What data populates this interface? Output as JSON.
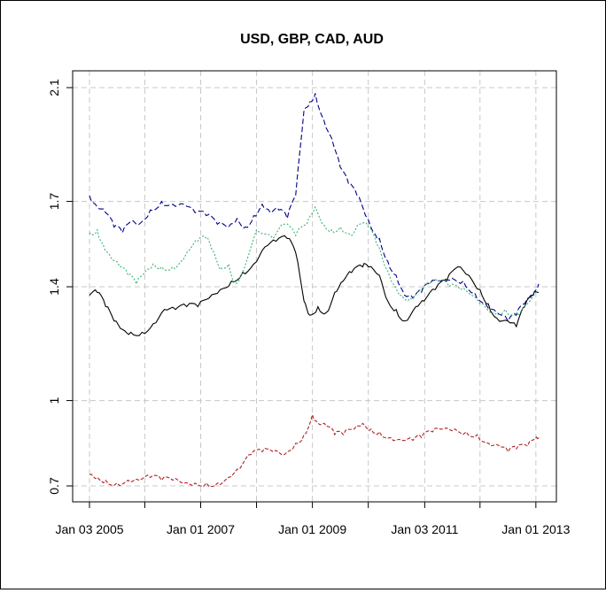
{
  "chart_data": {
    "type": "line",
    "title": "USD, GBP, CAD, AUD",
    "xlabel": "",
    "ylabel": "",
    "ylim": [
      0.65,
      2.2
    ],
    "xlim": [
      2005.01,
      2013.05
    ],
    "grid": true,
    "legend": "none",
    "yticks": [
      0.7,
      1.0,
      1.4,
      1.7,
      2.1
    ],
    "ytick_labels": [
      "0.7",
      "1",
      "1.4",
      "1.7",
      "2.1"
    ],
    "xticks": [
      2005.01,
      2007.0,
      2009.0,
      2011.01,
      2013.0
    ],
    "xtick_labels": [
      "Jan 03 2005",
      "Jan 01 2007",
      "Jan 01 2009",
      "Jan 03 2011",
      "Jan 01 2013"
    ],
    "minor_xticks": [
      2006.0,
      2008.0,
      2010.0,
      2012.0
    ],
    "series": [
      {
        "color": "#000000",
        "dash": "solid",
        "points": [
          [
            2005.01,
            1.37
          ],
          [
            2005.15,
            1.38
          ],
          [
            2005.3,
            1.33
          ],
          [
            2005.45,
            1.28
          ],
          [
            2005.6,
            1.25
          ],
          [
            2005.75,
            1.24
          ],
          [
            2005.95,
            1.24
          ],
          [
            2006.15,
            1.27
          ],
          [
            2006.35,
            1.32
          ],
          [
            2006.55,
            1.32
          ],
          [
            2006.75,
            1.33
          ],
          [
            2006.95,
            1.33
          ],
          [
            2007.15,
            1.36
          ],
          [
            2007.35,
            1.39
          ],
          [
            2007.55,
            1.42
          ],
          [
            2007.75,
            1.45
          ],
          [
            2007.95,
            1.48
          ],
          [
            2008.15,
            1.54
          ],
          [
            2008.35,
            1.56
          ],
          [
            2008.55,
            1.57
          ],
          [
            2008.7,
            1.52
          ],
          [
            2008.85,
            1.35
          ],
          [
            2008.95,
            1.3
          ],
          [
            2009.1,
            1.33
          ],
          [
            2009.25,
            1.31
          ],
          [
            2009.4,
            1.38
          ],
          [
            2009.55,
            1.42
          ],
          [
            2009.7,
            1.45
          ],
          [
            2009.9,
            1.47
          ],
          [
            2010.0,
            1.47
          ],
          [
            2010.2,
            1.44
          ],
          [
            2010.35,
            1.35
          ],
          [
            2010.5,
            1.32
          ],
          [
            2010.65,
            1.28
          ],
          [
            2010.85,
            1.33
          ],
          [
            2011.0,
            1.35
          ],
          [
            2011.2,
            1.39
          ],
          [
            2011.4,
            1.42
          ],
          [
            2011.6,
            1.47
          ],
          [
            2011.8,
            1.44
          ],
          [
            2012.0,
            1.39
          ],
          [
            2012.15,
            1.34
          ],
          [
            2012.3,
            1.29
          ],
          [
            2012.5,
            1.28
          ],
          [
            2012.65,
            1.26
          ],
          [
            2012.8,
            1.33
          ],
          [
            2012.95,
            1.37
          ],
          [
            2013.05,
            1.38
          ]
        ]
      },
      {
        "color": "#00008b",
        "dash": "6,3",
        "points": [
          [
            2005.01,
            1.72
          ],
          [
            2005.15,
            1.68
          ],
          [
            2005.3,
            1.66
          ],
          [
            2005.45,
            1.61
          ],
          [
            2005.6,
            1.59
          ],
          [
            2005.75,
            1.63
          ],
          [
            2005.9,
            1.62
          ],
          [
            2006.1,
            1.67
          ],
          [
            2006.3,
            1.7
          ],
          [
            2006.5,
            1.69
          ],
          [
            2006.7,
            1.69
          ],
          [
            2006.9,
            1.66
          ],
          [
            2007.1,
            1.65
          ],
          [
            2007.3,
            1.62
          ],
          [
            2007.5,
            1.61
          ],
          [
            2007.65,
            1.64
          ],
          [
            2007.8,
            1.61
          ],
          [
            2007.95,
            1.65
          ],
          [
            2008.1,
            1.69
          ],
          [
            2008.25,
            1.66
          ],
          [
            2008.4,
            1.67
          ],
          [
            2008.55,
            1.64
          ],
          [
            2008.7,
            1.72
          ],
          [
            2008.85,
            2.02
          ],
          [
            2008.95,
            2.05
          ],
          [
            2009.05,
            2.08
          ],
          [
            2009.2,
            1.99
          ],
          [
            2009.35,
            1.92
          ],
          [
            2009.5,
            1.82
          ],
          [
            2009.65,
            1.76
          ],
          [
            2009.8,
            1.72
          ],
          [
            2009.95,
            1.65
          ],
          [
            2010.1,
            1.59
          ],
          [
            2010.2,
            1.57
          ],
          [
            2010.35,
            1.49
          ],
          [
            2010.5,
            1.44
          ],
          [
            2010.65,
            1.37
          ],
          [
            2010.8,
            1.36
          ],
          [
            2010.95,
            1.38
          ],
          [
            2011.1,
            1.41
          ],
          [
            2011.3,
            1.42
          ],
          [
            2011.5,
            1.43
          ],
          [
            2011.7,
            1.42
          ],
          [
            2011.9,
            1.38
          ],
          [
            2012.1,
            1.34
          ],
          [
            2012.3,
            1.31
          ],
          [
            2012.5,
            1.28
          ],
          [
            2012.65,
            1.3
          ],
          [
            2012.8,
            1.34
          ],
          [
            2012.95,
            1.37
          ],
          [
            2013.05,
            1.41
          ]
        ]
      },
      {
        "color": "#3cb371",
        "dash": "2,2",
        "points": [
          [
            2005.01,
            1.59
          ],
          [
            2005.15,
            1.6
          ],
          [
            2005.25,
            1.55
          ],
          [
            2005.4,
            1.5
          ],
          [
            2005.55,
            1.47
          ],
          [
            2005.7,
            1.44
          ],
          [
            2005.85,
            1.41
          ],
          [
            2006.0,
            1.45
          ],
          [
            2006.15,
            1.48
          ],
          [
            2006.3,
            1.47
          ],
          [
            2006.5,
            1.47
          ],
          [
            2006.65,
            1.49
          ],
          [
            2006.8,
            1.53
          ],
          [
            2006.95,
            1.56
          ],
          [
            2007.1,
            1.57
          ],
          [
            2007.2,
            1.53
          ],
          [
            2007.35,
            1.46
          ],
          [
            2007.5,
            1.48
          ],
          [
            2007.6,
            1.42
          ],
          [
            2007.7,
            1.43
          ],
          [
            2008.0,
            1.6
          ],
          [
            2008.3,
            1.57
          ],
          [
            2008.5,
            1.62
          ],
          [
            2008.7,
            1.58
          ],
          [
            2008.9,
            1.62
          ],
          [
            2009.05,
            1.68
          ],
          [
            2009.2,
            1.62
          ],
          [
            2009.35,
            1.6
          ],
          [
            2009.5,
            1.61
          ],
          [
            2009.7,
            1.58
          ],
          [
            2009.85,
            1.62
          ],
          [
            2010.0,
            1.61
          ],
          [
            2010.15,
            1.55
          ],
          [
            2010.3,
            1.47
          ],
          [
            2010.45,
            1.41
          ],
          [
            2010.6,
            1.37
          ],
          [
            2010.75,
            1.36
          ],
          [
            2010.9,
            1.39
          ],
          [
            2011.05,
            1.41
          ],
          [
            2011.25,
            1.42
          ],
          [
            2011.45,
            1.4
          ],
          [
            2011.65,
            1.39
          ],
          [
            2011.85,
            1.37
          ],
          [
            2012.05,
            1.34
          ],
          [
            2012.25,
            1.31
          ],
          [
            2012.45,
            1.32
          ],
          [
            2012.65,
            1.3
          ],
          [
            2012.85,
            1.34
          ],
          [
            2013.05,
            1.38
          ]
        ]
      },
      {
        "color": "#b22222",
        "dash": "4,2",
        "points": [
          [
            2005.01,
            0.74
          ],
          [
            2005.15,
            0.73
          ],
          [
            2005.3,
            0.72
          ],
          [
            2005.5,
            0.71
          ],
          [
            2005.7,
            0.72
          ],
          [
            2005.9,
            0.72
          ],
          [
            2006.1,
            0.73
          ],
          [
            2006.3,
            0.72
          ],
          [
            2006.5,
            0.72
          ],
          [
            2006.7,
            0.71
          ],
          [
            2006.9,
            0.71
          ],
          [
            2007.1,
            0.71
          ],
          [
            2007.3,
            0.71
          ],
          [
            2007.5,
            0.73
          ],
          [
            2007.7,
            0.76
          ],
          [
            2007.9,
            0.81
          ],
          [
            2008.1,
            0.82
          ],
          [
            2008.3,
            0.82
          ],
          [
            2008.5,
            0.81
          ],
          [
            2008.7,
            0.85
          ],
          [
            2008.85,
            0.88
          ],
          [
            2009.0,
            0.95
          ],
          [
            2009.1,
            0.92
          ],
          [
            2009.25,
            0.91
          ],
          [
            2009.4,
            0.88
          ],
          [
            2009.55,
            0.88
          ],
          [
            2009.75,
            0.9
          ],
          [
            2009.9,
            0.92
          ],
          [
            2010.05,
            0.9
          ],
          [
            2010.2,
            0.89
          ],
          [
            2010.4,
            0.87
          ],
          [
            2010.6,
            0.86
          ],
          [
            2010.8,
            0.86
          ],
          [
            2010.95,
            0.87
          ],
          [
            2011.15,
            0.89
          ],
          [
            2011.35,
            0.9
          ],
          [
            2011.55,
            0.9
          ],
          [
            2011.75,
            0.89
          ],
          [
            2011.95,
            0.88
          ],
          [
            2012.15,
            0.85
          ],
          [
            2012.35,
            0.84
          ],
          [
            2012.5,
            0.82
          ],
          [
            2012.65,
            0.83
          ],
          [
            2012.85,
            0.84
          ],
          [
            2013.0,
            0.87
          ],
          [
            2013.05,
            0.87
          ]
        ]
      }
    ]
  }
}
